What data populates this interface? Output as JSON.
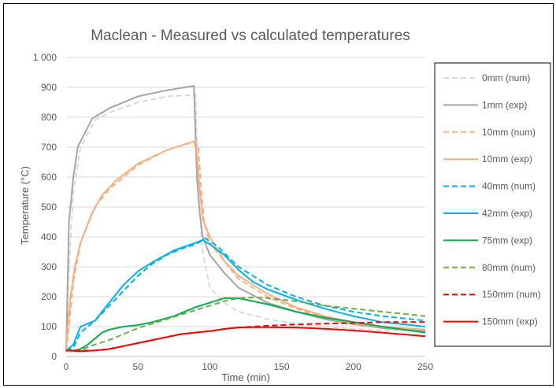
{
  "chart_data": {
    "type": "line",
    "title": "Maclean - Measured vs calculated temperatures",
    "xlabel": "Time (min)",
    "ylabel": "Temperature (°C)",
    "xlim": [
      0,
      250
    ],
    "ylim": [
      0,
      1000
    ],
    "x_ticks": [
      0,
      50,
      100,
      150,
      200,
      250
    ],
    "x_tick_labels": [
      "0",
      "50",
      "100",
      "150",
      "200",
      "250"
    ],
    "y_ticks": [
      0,
      100,
      200,
      300,
      400,
      500,
      600,
      700,
      800,
      900,
      1000
    ],
    "y_tick_labels": [
      "0",
      "100",
      "200",
      "300",
      "400",
      "500",
      "600",
      "700",
      "800",
      "900",
      "1 000"
    ],
    "grid": "horizontal",
    "legend_position": "right",
    "series": [
      {
        "name": "0mm (num)",
        "color": "#d9d9d9",
        "dash": true,
        "x": [
          0,
          2,
          5,
          10,
          20,
          30,
          50,
          70,
          90,
          92,
          95,
          100,
          110,
          120,
          140,
          160,
          180,
          200,
          220,
          250
        ],
        "y": [
          20,
          300,
          550,
          700,
          790,
          815,
          850,
          870,
          875,
          560,
          350,
          230,
          180,
          150,
          125,
          110,
          100,
          92,
          88,
          85
        ]
      },
      {
        "name": "1mm (exp)",
        "color": "#a5a5a5",
        "dash": false,
        "x": [
          0,
          2,
          5,
          8,
          18,
          30,
          50,
          70,
          89,
          91,
          93,
          95,
          100,
          110,
          120,
          140,
          160,
          180,
          200,
          220,
          250
        ],
        "y": [
          15,
          450,
          600,
          700,
          795,
          830,
          870,
          890,
          905,
          600,
          480,
          400,
          340,
          280,
          230,
          180,
          150,
          125,
          108,
          95,
          85
        ]
      },
      {
        "name": "10mm (num)",
        "color": "#f4b183",
        "dash": true,
        "x": [
          0,
          2,
          5,
          10,
          20,
          30,
          50,
          70,
          90,
          92,
          94,
          96,
          100,
          110,
          120,
          140,
          160,
          180,
          200,
          220,
          250
        ],
        "y": [
          20,
          100,
          250,
          380,
          500,
          560,
          640,
          690,
          720,
          700,
          560,
          450,
          380,
          320,
          260,
          200,
          160,
          130,
          110,
          98,
          90
        ]
      },
      {
        "name": "10mm (exp)",
        "color": "#f4b183",
        "dash": false,
        "x": [
          0,
          1,
          3,
          6,
          10,
          18,
          25,
          35,
          50,
          70,
          89,
          91,
          93,
          95,
          100,
          110,
          120,
          140,
          160,
          180,
          200,
          220,
          250
        ],
        "y": [
          20,
          100,
          200,
          300,
          380,
          480,
          540,
          590,
          645,
          690,
          720,
          680,
          560,
          460,
          400,
          320,
          270,
          210,
          165,
          135,
          115,
          100,
          90
        ]
      },
      {
        "name": "40mm (num)",
        "color": "#00b0f0",
        "dash": true,
        "x": [
          0,
          5,
          10,
          20,
          30,
          40,
          50,
          60,
          70,
          80,
          90,
          97,
          105,
          120,
          140,
          160,
          180,
          200,
          220,
          250
        ],
        "y": [
          20,
          30,
          80,
          120,
          170,
          220,
          270,
          310,
          340,
          360,
          375,
          395,
          370,
          300,
          240,
          200,
          170,
          150,
          135,
          120
        ]
      },
      {
        "name": "42mm (exp)",
        "color": "#00b0f0",
        "dash": false,
        "x": [
          0,
          5,
          10,
          15,
          20,
          30,
          40,
          50,
          60,
          75,
          90,
          95,
          100,
          110,
          120,
          130,
          140,
          160,
          180,
          200,
          220,
          250
        ],
        "y": [
          20,
          40,
          100,
          110,
          120,
          180,
          240,
          285,
          315,
          355,
          380,
          390,
          375,
          340,
          290,
          250,
          225,
          190,
          160,
          135,
          115,
          100
        ]
      },
      {
        "name": "75mm (exp)",
        "color": "#00b050",
        "dash": false,
        "x": [
          0,
          5,
          10,
          15,
          20,
          25,
          30,
          40,
          50,
          60,
          75,
          90,
          100,
          110,
          120,
          140,
          160,
          180,
          200,
          220,
          250
        ],
        "y": [
          20,
          20,
          25,
          40,
          60,
          80,
          90,
          100,
          105,
          115,
          135,
          165,
          180,
          195,
          195,
          175,
          150,
          130,
          115,
          100,
          80
        ]
      },
      {
        "name": "80mm (num)",
        "color": "#70ad47",
        "dash": true,
        "x": [
          0,
          10,
          20,
          30,
          40,
          50,
          60,
          70,
          80,
          90,
          100,
          110,
          120,
          130,
          140,
          160,
          180,
          200,
          220,
          250
        ],
        "y": [
          20,
          22,
          40,
          55,
          75,
          95,
          110,
          125,
          140,
          155,
          170,
          185,
          195,
          198,
          195,
          185,
          170,
          160,
          150,
          135
        ]
      },
      {
        "name": "150mm (num)",
        "color": "#ff0000",
        "dash": true,
        "x": [
          0,
          10,
          20,
          30,
          40,
          50,
          60,
          70,
          80,
          90,
          100,
          110,
          120,
          130,
          140,
          160,
          180,
          200,
          220,
          250
        ],
        "y": [
          20,
          20,
          20,
          25,
          35,
          45,
          55,
          65,
          75,
          80,
          85,
          92,
          97,
          100,
          103,
          107,
          110,
          112,
          115,
          115
        ]
      },
      {
        "name": "150mm (exp)",
        "color": "#ff0000",
        "dash": false,
        "x": [
          0,
          10,
          20,
          30,
          40,
          50,
          60,
          70,
          80,
          90,
          100,
          110,
          120,
          130,
          140,
          160,
          180,
          200,
          220,
          250
        ],
        "y": [
          20,
          18,
          20,
          25,
          35,
          45,
          55,
          65,
          75,
          80,
          85,
          92,
          97,
          98,
          98,
          97,
          93,
          87,
          80,
          68
        ]
      }
    ]
  }
}
